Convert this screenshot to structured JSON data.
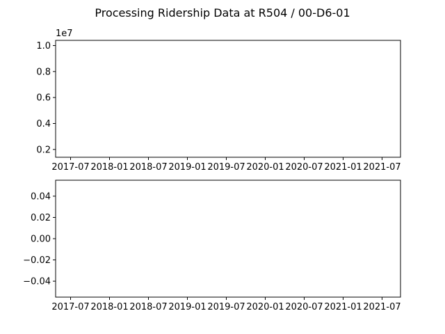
{
  "figure": {
    "title": "Processing Ridership Data at R504 / 00-D6-01",
    "background": "#ffffff",
    "axis_color": "#000000"
  },
  "chart_data": [
    {
      "type": "line",
      "title": "",
      "xlabel": "",
      "ylabel": "",
      "x_ticks": [
        "2017-07",
        "2018-01",
        "2018-07",
        "2019-01",
        "2019-07",
        "2020-01",
        "2020-07",
        "2021-01",
        "2021-07"
      ],
      "y_ticks": [
        "0.2",
        "0.4",
        "0.6",
        "0.8",
        "1.0"
      ],
      "y_tick_values": [
        0.2,
        0.4,
        0.6,
        0.8,
        1.0
      ],
      "ylim": [
        0.14,
        1.04
      ],
      "y_offset_label": "1e7",
      "series": [],
      "grid": false
    },
    {
      "type": "line",
      "title": "",
      "xlabel": "",
      "ylabel": "",
      "x_ticks": [
        "2017-07",
        "2018-01",
        "2018-07",
        "2019-01",
        "2019-07",
        "2020-01",
        "2020-07",
        "2021-01",
        "2021-07"
      ],
      "y_ticks": [
        "0.04",
        "0.02",
        "0.00",
        "−0.02",
        "−0.04"
      ],
      "y_tick_values": [
        0.04,
        0.02,
        0.0,
        -0.02,
        -0.04
      ],
      "ylim": [
        -0.055,
        0.055
      ],
      "series": [],
      "grid": false
    }
  ]
}
